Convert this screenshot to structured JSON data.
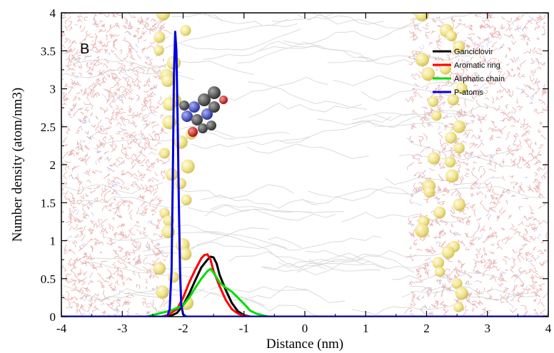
{
  "chart_data": {
    "type": "line",
    "panel_label": "B",
    "xlabel": "Distance (nm)",
    "ylabel": "Number density (atom/nm3)",
    "xlim": [
      -4,
      4
    ],
    "ylim": [
      0,
      4
    ],
    "xticks": [
      -4,
      -3,
      -2,
      -1,
      0,
      1,
      2,
      3,
      4
    ],
    "yticks": [
      0,
      0.5,
      1,
      1.5,
      2,
      2.5,
      3,
      3.5,
      4
    ],
    "xtick_labels": [
      "-4",
      "-3",
      "-2",
      "-1",
      "0",
      "1",
      "2",
      "3",
      "4"
    ],
    "ytick_labels": [
      "0",
      "0.5",
      "1",
      "1.5",
      "2",
      "2.5",
      "3",
      "3.5",
      "4"
    ],
    "legend_position": "top-right",
    "background": "membrane simulation snapshot (water, lipid tails, phosphate spheres, drug molecule)",
    "series": [
      {
        "name": "Ganciclovir",
        "color": "#000000",
        "x": [
          -4,
          -2.3,
          -2.2,
          -2.1,
          -2.0,
          -1.9,
          -1.8,
          -1.7,
          -1.6,
          -1.55,
          -1.5,
          -1.45,
          -1.4,
          -1.3,
          -1.2,
          -1.1,
          -1.0,
          -0.9,
          4
        ],
        "y": [
          0,
          0,
          0.01,
          0.05,
          0.15,
          0.3,
          0.48,
          0.65,
          0.75,
          0.79,
          0.78,
          0.7,
          0.55,
          0.35,
          0.18,
          0.07,
          0.02,
          0,
          0
        ]
      },
      {
        "name": "Aromatic ring",
        "color": "#ff0000",
        "x": [
          -4,
          -2.35,
          -2.25,
          -2.1,
          -2.0,
          -1.9,
          -1.8,
          -1.7,
          -1.65,
          -1.6,
          -1.55,
          -1.5,
          -1.4,
          -1.3,
          -1.2,
          -1.1,
          -1.0,
          -0.9,
          4
        ],
        "y": [
          0,
          0,
          0.02,
          0.1,
          0.25,
          0.45,
          0.62,
          0.77,
          0.81,
          0.82,
          0.75,
          0.6,
          0.4,
          0.22,
          0.1,
          0.04,
          0.01,
          0,
          0
        ]
      },
      {
        "name": "Aliphatic chain",
        "color": "#00dd00",
        "x": [
          -4,
          -2.6,
          -2.4,
          -2.2,
          -2.0,
          -1.9,
          -1.8,
          -1.7,
          -1.6,
          -1.55,
          -1.5,
          -1.4,
          -1.3,
          -1.2,
          -1.1,
          -1.0,
          -0.9,
          -0.8,
          -0.7,
          -0.6,
          4
        ],
        "y": [
          0,
          0,
          0.04,
          0.08,
          0.15,
          0.25,
          0.38,
          0.5,
          0.6,
          0.63,
          0.58,
          0.45,
          0.38,
          0.33,
          0.25,
          0.17,
          0.08,
          0.04,
          0.02,
          0,
          0
        ]
      },
      {
        "name": "P-atoms",
        "color": "#0000dd",
        "x": [
          -4,
          -2.26,
          -2.22,
          -2.19,
          -2.17,
          -2.15,
          -2.13,
          -2.11,
          -2.09,
          -2.07,
          -2.05,
          -2.03,
          -2.0,
          -1.95,
          4
        ],
        "y": [
          0,
          0,
          0.1,
          0.6,
          1.8,
          3.2,
          3.75,
          3.5,
          2.6,
          1.5,
          0.6,
          0.15,
          0.03,
          0,
          0
        ]
      }
    ]
  }
}
